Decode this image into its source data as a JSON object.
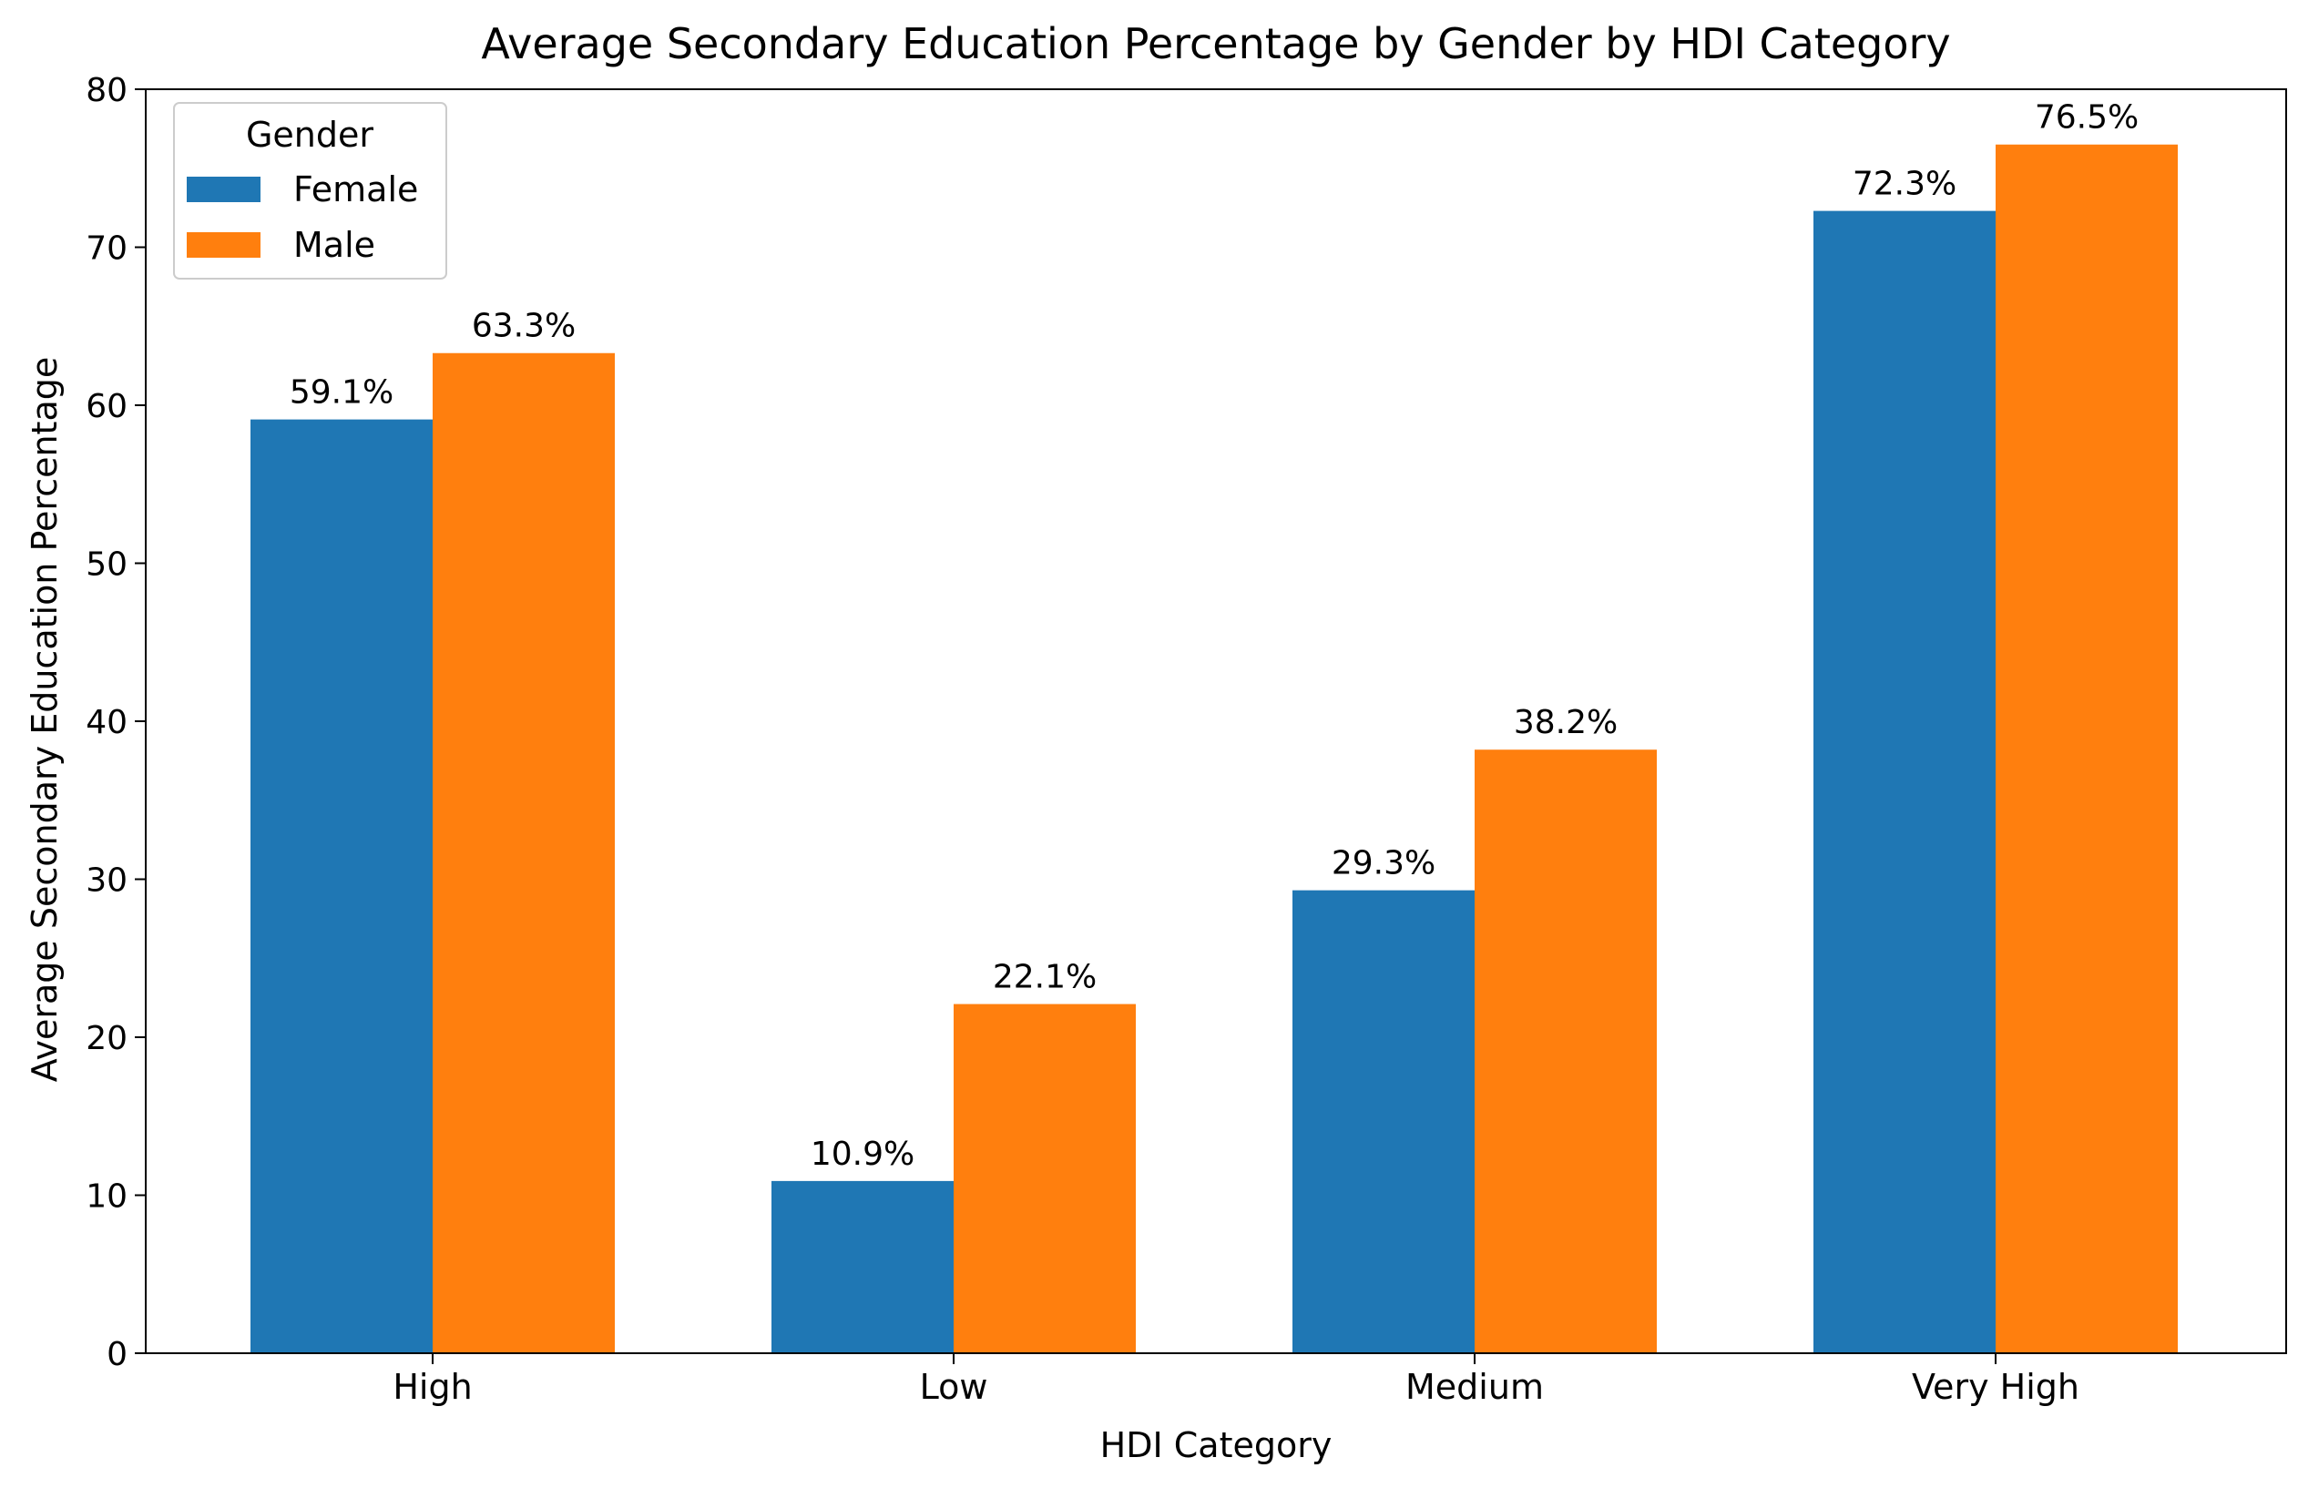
{
  "chart_data": {
    "type": "bar",
    "title": "Average Secondary Education Percentage by Gender by HDI Category",
    "xlabel": "HDI Category",
    "ylabel": "Average Secondary Education Percentage",
    "categories": [
      "High",
      "Low",
      "Medium",
      "Very High"
    ],
    "series": [
      {
        "name": "Female",
        "color": "#1f77b4",
        "values": [
          59.1,
          10.9,
          29.3,
          72.3
        ],
        "labels": [
          "59.1%",
          "10.9%",
          "29.3%",
          "72.3%"
        ]
      },
      {
        "name": "Male",
        "color": "#ff7f0e",
        "values": [
          63.3,
          22.1,
          38.2,
          76.5
        ],
        "labels": [
          "63.3%",
          "22.1%",
          "38.2%",
          "76.5%"
        ]
      }
    ],
    "ylim": [
      0,
      80
    ],
    "yticks": [
      0,
      10,
      20,
      30,
      40,
      50,
      60,
      70,
      80
    ],
    "legend": {
      "title": "Gender",
      "placement": "top-left"
    },
    "grid": false
  }
}
